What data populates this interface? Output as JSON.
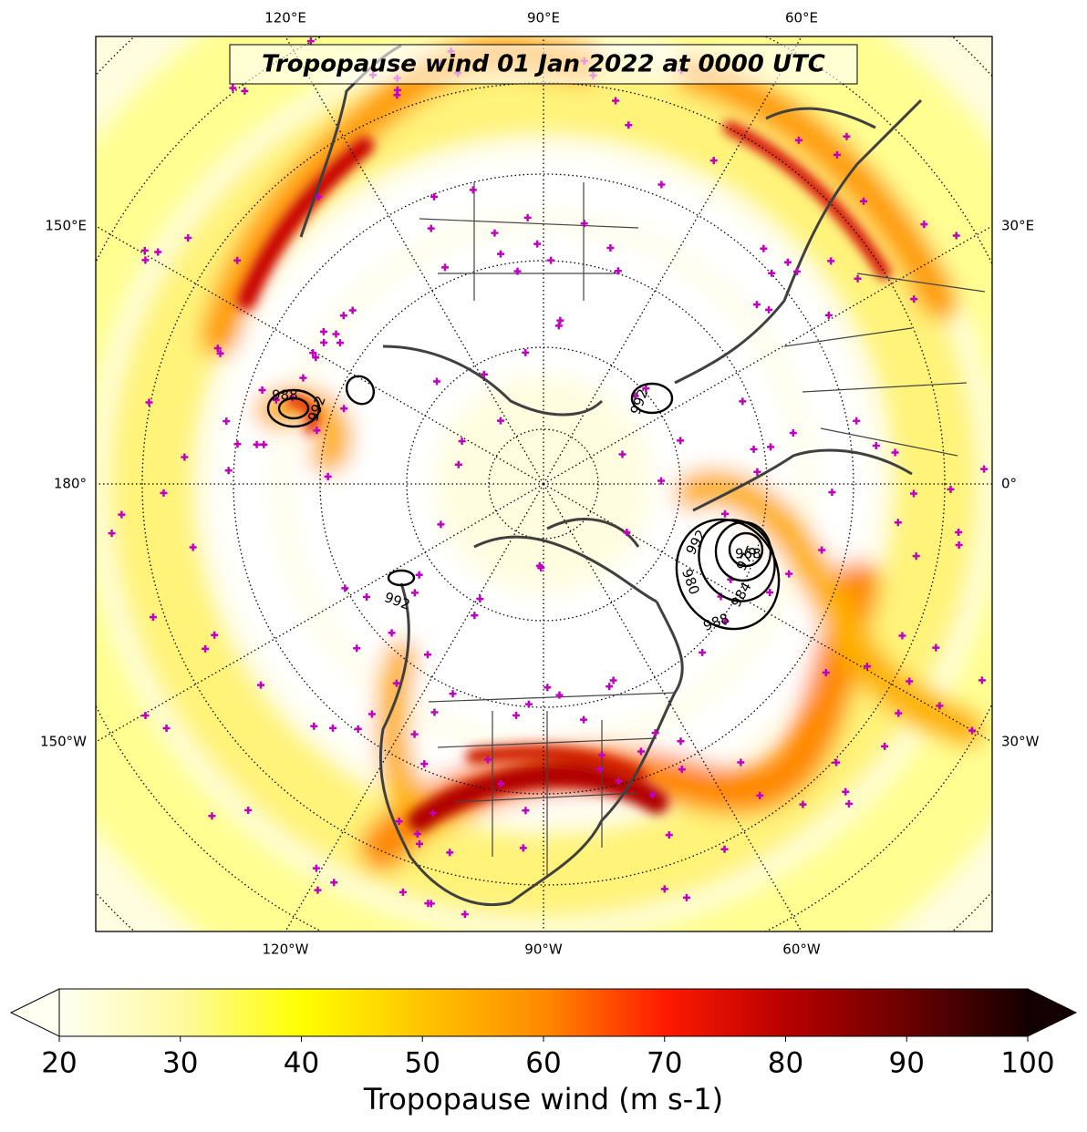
{
  "title": "Tropopause wind 01 Jan 2022 at 0000 UTC",
  "longitude_labels": {
    "top": [
      "120°E",
      "90°E",
      "60°E"
    ],
    "left": [
      "150°E",
      "180°",
      "150°W"
    ],
    "right": [
      "30°E",
      "0°",
      "30°W"
    ],
    "bottom": [
      "120°W",
      "90°W",
      "60°W"
    ]
  },
  "contour_labels": [
    988,
    992,
    992,
    992,
    968,
    976,
    984,
    980,
    988,
    992
  ],
  "colorbar": {
    "label": "Tropopause wind (m s-1)",
    "lim": [
      20,
      100
    ],
    "ticks": [
      20,
      30,
      40,
      50,
      60,
      70,
      80,
      90,
      100
    ],
    "extend": "both"
  }
}
